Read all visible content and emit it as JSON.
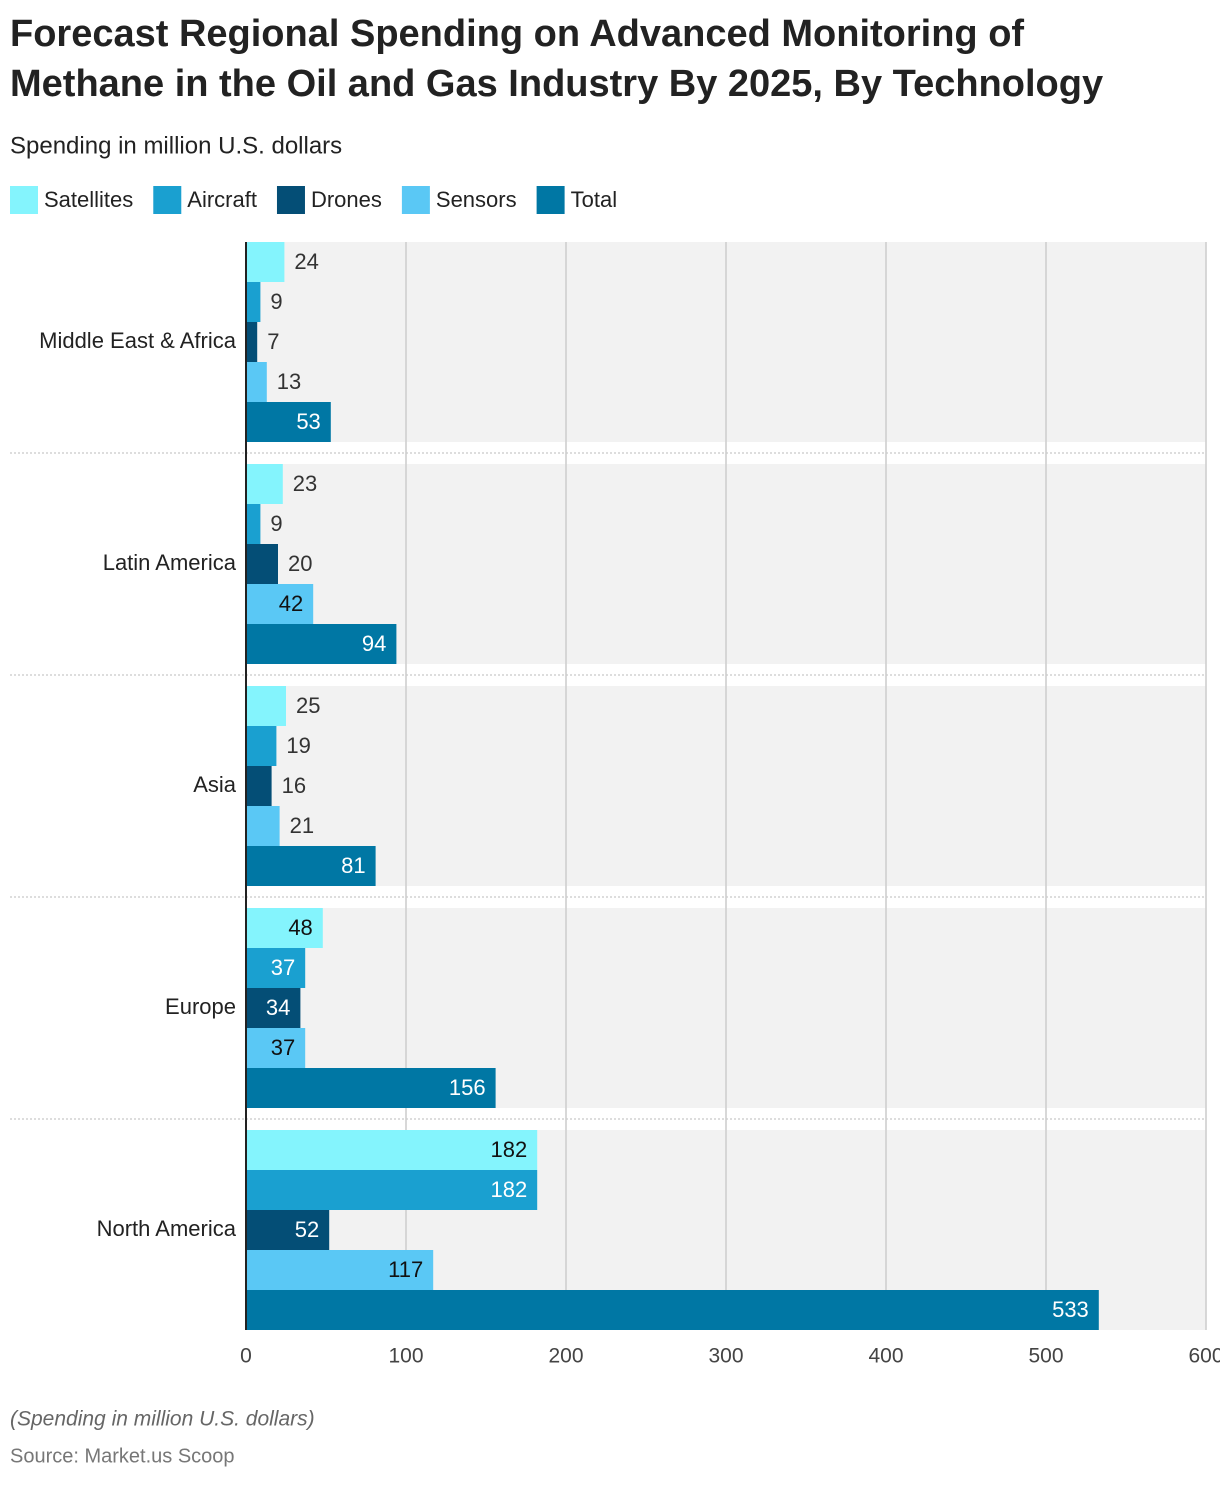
{
  "chart_data": {
    "type": "hbar",
    "title": [
      "Forecast Regional Spending on Advanced Monitoring of",
      "Methane in the Oil and Gas Industry By 2025, By Technology"
    ],
    "subtitle": "Spending in million U.S. dollars",
    "categories": [
      "Middle East & Africa",
      "Latin America",
      "Asia",
      "Europe",
      "North America"
    ],
    "series": [
      {
        "name": "Satellites",
        "color": "#84f4fd",
        "values": [
          24,
          23,
          25,
          48,
          182
        ]
      },
      {
        "name": "Aircraft",
        "color": "#1aa0d0",
        "values": [
          9,
          9,
          19,
          37,
          182
        ]
      },
      {
        "name": "Drones",
        "color": "#044e76",
        "values": [
          7,
          20,
          16,
          34,
          52
        ]
      },
      {
        "name": "Sensors",
        "color": "#5ac8f5",
        "values": [
          13,
          42,
          21,
          37,
          117
        ]
      },
      {
        "name": "Total",
        "color": "#0077a4",
        "values": [
          53,
          94,
          81,
          156,
          533
        ]
      }
    ],
    "xlim": [
      0,
      600
    ],
    "xticks": [
      0,
      100,
      200,
      300,
      400,
      500,
      600
    ],
    "grid": true,
    "notes": [
      "(Spending in million U.S. dollars)",
      "Source: Market.us Scoop"
    ]
  }
}
